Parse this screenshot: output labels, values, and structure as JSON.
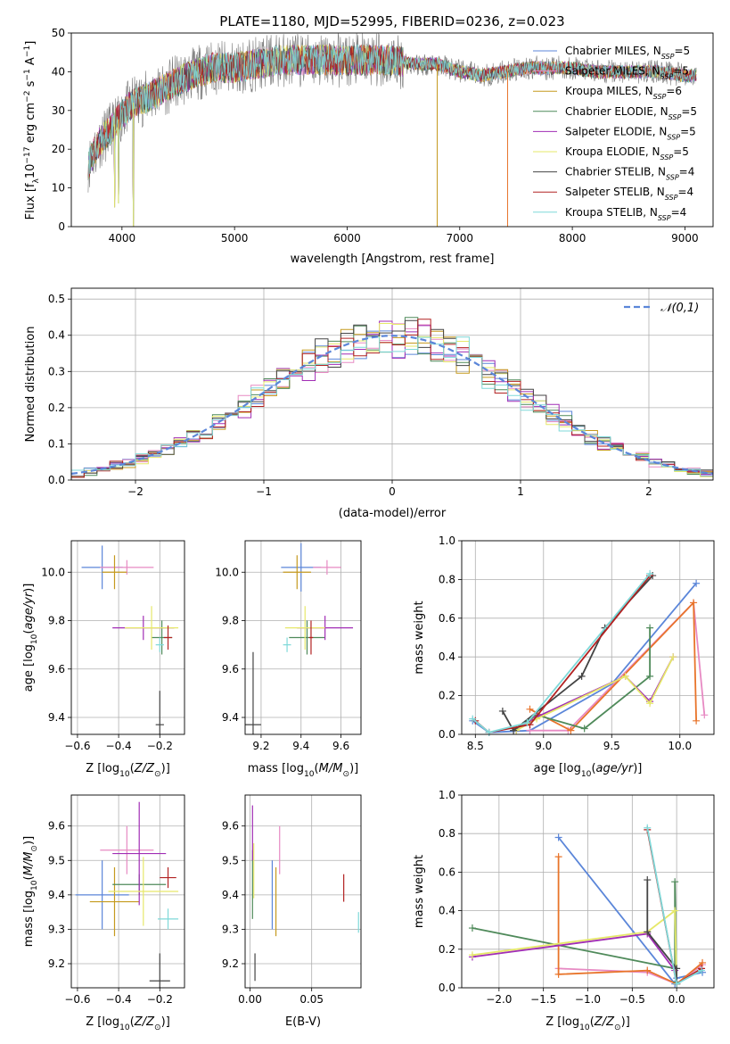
{
  "title": "PLATE=1180, MJD=52995, FIBERID=0236, z=0.023",
  "colors": {
    "Chabrier MILES": "#5b86d9",
    "Salpeter MILES": "#e78ac3",
    "Kroupa MILES": "#c59a1e",
    "Chabrier ELODIE": "#4f8a5a",
    "Salpeter ELODIE": "#a12db5",
    "Kroupa ELODIE": "#e6e86a",
    "Chabrier STELIB": "#444444",
    "Salpeter STELIB": "#b22222",
    "Kroupa STELIB": "#7fd9d9",
    "orange": "#e8742a",
    "gaussian": "#5b86d9"
  },
  "chart_data": [
    {
      "id": "spectrum",
      "type": "line",
      "title": "PLATE=1180, MJD=52995, FIBERID=0236, z=0.023",
      "xlabel": "wavelength [Angstrom, rest frame]",
      "ylabel": "Flux [f_λ 10^-17 erg cm^-2 s^-1 A^-1]",
      "xlim": [
        3550,
        9250
      ],
      "ylim": [
        0,
        50
      ],
      "xticks": [
        4000,
        5000,
        6000,
        7000,
        8000,
        9000
      ],
      "yticks": [
        0,
        10,
        20,
        30,
        40,
        50
      ],
      "legend_position": "top-right",
      "legend": [
        {
          "label": "Chabrier MILES, N",
          "sub": "SSP",
          "tail": "=5"
        },
        {
          "label": "Salpeter MILES, N",
          "sub": "SSP",
          "tail": "=5"
        },
        {
          "label": "Kroupa MILES, N",
          "sub": "SSP",
          "tail": "=6"
        },
        {
          "label": "Chabrier ELODIE, N",
          "sub": "SSP",
          "tail": "=5"
        },
        {
          "label": "Salpeter ELODIE, N",
          "sub": "SSP",
          "tail": "=5"
        },
        {
          "label": "Kroupa ELODIE, N",
          "sub": "SSP",
          "tail": "=5"
        },
        {
          "label": "Chabrier STELIB, N",
          "sub": "SSP",
          "tail": "=4"
        },
        {
          "label": "Salpeter STELIB, N",
          "sub": "SSP",
          "tail": "=4"
        },
        {
          "label": "Kroupa STELIB, N",
          "sub": "SSP",
          "tail": "=4"
        }
      ],
      "continuum": [
        [
          3700,
          16
        ],
        [
          3800,
          22
        ],
        [
          3900,
          25
        ],
        [
          4000,
          29
        ],
        [
          4100,
          32
        ],
        [
          4200,
          33
        ],
        [
          4400,
          36
        ],
        [
          4600,
          39
        ],
        [
          4800,
          41
        ],
        [
          5000,
          41
        ],
        [
          5200,
          42
        ],
        [
          5400,
          43
        ],
        [
          5600,
          43
        ],
        [
          5800,
          43
        ],
        [
          6000,
          43
        ],
        [
          6200,
          43
        ],
        [
          6400,
          43
        ],
        [
          6600,
          42
        ],
        [
          6800,
          42
        ],
        [
          7000,
          40
        ],
        [
          7200,
          39
        ],
        [
          7400,
          40
        ],
        [
          7600,
          41
        ],
        [
          7800,
          41
        ],
        [
          8000,
          41
        ],
        [
          8200,
          40
        ],
        [
          8400,
          40
        ],
        [
          8600,
          40
        ],
        [
          8800,
          40
        ],
        [
          9000,
          39
        ],
        [
          9100,
          39
        ]
      ],
      "absorption_dips": [
        {
          "x": 3935,
          "y": 5
        },
        {
          "x": 3968,
          "y": 6
        },
        {
          "x": 4102,
          "y": 0
        },
        {
          "x": 6800,
          "y": 0
        },
        {
          "x": 7425,
          "y": 0
        }
      ]
    },
    {
      "id": "residuals",
      "type": "area",
      "xlabel": "(data-model)/error",
      "ylabel": "Normed distribution",
      "xlim": [
        -2.5,
        2.5
      ],
      "ylim": [
        0,
        0.53
      ],
      "xticks": [
        -2,
        -1,
        0,
        1,
        2
      ],
      "yticks": [
        0.0,
        0.1,
        0.2,
        0.3,
        0.4,
        0.5
      ],
      "legend_position": "top-right",
      "legend": [
        "N(0,1)"
      ],
      "bin_width": 0.1
    },
    {
      "id": "age-vs-Z",
      "type": "scatter",
      "xlabel": "Z [log10(Z/Z⊙)]",
      "ylabel": "age [log10(age/yr)]",
      "xlim": [
        -0.63,
        -0.08
      ],
      "ylim": [
        9.33,
        10.13
      ],
      "xticks": [
        -0.6,
        -0.4,
        -0.2
      ],
      "yticks": [
        9.4,
        9.6,
        9.8,
        10.0
      ],
      "points": [
        {
          "model": "Chabrier MILES",
          "x": -0.48,
          "y": 10.02,
          "xerr": 0.1,
          "yerr": 0.09
        },
        {
          "model": "Salpeter MILES",
          "x": -0.36,
          "y": 10.02,
          "xerr": 0.13,
          "yerr": 0.03
        },
        {
          "model": "Kroupa MILES",
          "x": -0.42,
          "y": 10.0,
          "xerr": 0.06,
          "yerr": 0.07
        },
        {
          "model": "Chabrier ELODIE",
          "x": -0.19,
          "y": 9.73,
          "xerr": 0.05,
          "yerr": 0.07
        },
        {
          "model": "Salpeter ELODIE",
          "x": -0.28,
          "y": 9.77,
          "xerr": 0.15,
          "yerr": 0.05
        },
        {
          "model": "Kroupa ELODIE",
          "x": -0.24,
          "y": 9.77,
          "xerr": 0.13,
          "yerr": 0.09
        },
        {
          "model": "Chabrier STELIB",
          "x": -0.2,
          "y": 9.37,
          "xerr": 0.02,
          "yerr": 0.14
        },
        {
          "model": "Salpeter STELIB",
          "x": -0.16,
          "y": 9.73,
          "xerr": 0.02,
          "yerr": 0.05
        },
        {
          "model": "Kroupa STELIB",
          "x": -0.2,
          "y": 9.7,
          "xerr": 0.02,
          "yerr": 0.03
        }
      ]
    },
    {
      "id": "age-vs-mass",
      "type": "scatter",
      "xlabel": "mass [log10(M/M⊙)]",
      "ylabel": "",
      "xlim": [
        9.12,
        9.7
      ],
      "ylim": [
        9.33,
        10.13
      ],
      "xticks": [
        9.2,
        9.4,
        9.6
      ],
      "yticks": [
        9.4,
        9.6,
        9.8,
        10.0
      ],
      "points": [
        {
          "model": "Chabrier MILES",
          "x": 9.4,
          "y": 10.02,
          "xerr": 0.1,
          "yerr": 0.1
        },
        {
          "model": "Salpeter MILES",
          "x": 9.53,
          "y": 10.02,
          "xerr": 0.07,
          "yerr": 0.03
        },
        {
          "model": "Kroupa MILES",
          "x": 9.38,
          "y": 10.0,
          "xerr": 0.07,
          "yerr": 0.07
        },
        {
          "model": "Chabrier ELODIE",
          "x": 9.43,
          "y": 9.73,
          "xerr": 0.09,
          "yerr": 0.07
        },
        {
          "model": "Salpeter ELODIE",
          "x": 9.52,
          "y": 9.77,
          "xerr": 0.14,
          "yerr": 0.05
        },
        {
          "model": "Kroupa ELODIE",
          "x": 9.42,
          "y": 9.77,
          "xerr": 0.1,
          "yerr": 0.09
        },
        {
          "model": "Chabrier STELIB",
          "x": 9.16,
          "y": 9.37,
          "xerr": 0.04,
          "yerr": 0.3
        },
        {
          "model": "Salpeter STELIB",
          "x": 9.45,
          "y": 9.73,
          "xerr": 0.01,
          "yerr": 0.07
        },
        {
          "model": "Kroupa STELIB",
          "x": 9.33,
          "y": 9.7,
          "xerr": 0.02,
          "yerr": 0.03
        }
      ]
    },
    {
      "id": "mass-weight-vs-age",
      "type": "line",
      "xlabel": "age [log10(age/yr)]",
      "ylabel": "mass weight",
      "xlim": [
        8.4,
        10.25
      ],
      "ylim": [
        0,
        1
      ],
      "xticks": [
        8.5,
        9.0,
        9.5,
        10.0
      ],
      "yticks": [
        0.0,
        0.2,
        0.4,
        0.6,
        0.8,
        1.0
      ],
      "series": [
        {
          "model": "Chabrier MILES",
          "x": [
            8.48,
            8.6,
            8.9,
            9.5,
            10.12
          ],
          "y": [
            0.07,
            0.01,
            0.02,
            0.26,
            0.78
          ]
        },
        {
          "model": "Salpeter MILES",
          "x": [
            8.9,
            9.18,
            10.1,
            10.18
          ],
          "y": [
            0.02,
            0.02,
            0.68,
            0.1
          ]
        },
        {
          "model": "Kroupa MILES",
          "x": [
            8.9,
            9.2,
            10.1,
            10.12
          ],
          "y": [
            0.13,
            0.02,
            0.68,
            0.07
          ]
        },
        {
          "model": "Chabrier ELODIE",
          "x": [
            8.8,
            8.95,
            9.3,
            9.78,
            9.78
          ],
          "y": [
            0.03,
            0.1,
            0.03,
            0.3,
            0.55
          ]
        },
        {
          "model": "Salpeter ELODIE",
          "x": [
            8.8,
            8.95,
            9.6,
            9.78,
            9.95
          ],
          "y": [
            0.02,
            0.09,
            0.3,
            0.17,
            0.4
          ]
        },
        {
          "model": "Kroupa ELODIE",
          "x": [
            8.8,
            8.95,
            9.6,
            9.78,
            9.95
          ],
          "y": [
            0.02,
            0.08,
            0.3,
            0.16,
            0.4
          ]
        },
        {
          "model": "Chabrier STELIB",
          "x": [
            8.7,
            8.78,
            9.28,
            9.45,
            9.8
          ],
          "y": [
            0.12,
            0.02,
            0.3,
            0.55,
            0.82
          ]
        },
        {
          "model": "Salpeter STELIB",
          "x": [
            8.5,
            8.6,
            8.9,
            9.78
          ],
          "y": [
            0.07,
            0.01,
            0.05,
            0.82
          ]
        },
        {
          "model": "Kroupa STELIB",
          "x": [
            8.48,
            8.6,
            8.88,
            9.78
          ],
          "y": [
            0.08,
            0.01,
            0.06,
            0.83
          ]
        }
      ]
    },
    {
      "id": "mass-vs-Z",
      "type": "scatter",
      "xlabel": "Z [log10(Z/Z⊙)]",
      "ylabel": "mass [log10(M/M⊙)]",
      "xlim": [
        -0.63,
        -0.08
      ],
      "ylim": [
        9.13,
        9.69
      ],
      "xticks": [
        -0.6,
        -0.4,
        -0.2
      ],
      "yticks": [
        9.2,
        9.3,
        9.4,
        9.5,
        9.6
      ],
      "points": [
        {
          "model": "Chabrier MILES",
          "x": -0.48,
          "y": 9.4,
          "xerr": 0.13,
          "yerr": 0.1
        },
        {
          "model": "Salpeter MILES",
          "x": -0.36,
          "y": 9.53,
          "xerr": 0.13,
          "yerr": 0.07
        },
        {
          "model": "Kroupa MILES",
          "x": -0.42,
          "y": 9.38,
          "xerr": 0.12,
          "yerr": 0.1
        },
        {
          "model": "Chabrier ELODIE",
          "x": -0.3,
          "y": 9.43,
          "xerr": 0.13,
          "yerr": 0.03
        },
        {
          "model": "Salpeter ELODIE",
          "x": -0.3,
          "y": 9.52,
          "xerr": 0.13,
          "yerr": 0.15
        },
        {
          "model": "Kroupa ELODIE",
          "x": -0.28,
          "y": 9.41,
          "xerr": 0.17,
          "yerr": 0.1
        },
        {
          "model": "Chabrier STELIB",
          "x": -0.2,
          "y": 9.15,
          "xerr": 0.05,
          "yerr": 0.08
        },
        {
          "model": "Salpeter STELIB",
          "x": -0.16,
          "y": 9.45,
          "xerr": 0.04,
          "yerr": 0.03
        },
        {
          "model": "Kroupa STELIB",
          "x": -0.16,
          "y": 9.33,
          "xerr": 0.05,
          "yerr": 0.03
        }
      ]
    },
    {
      "id": "mass-vs-EBV",
      "type": "scatter",
      "xlabel": "E(B-V)",
      "ylabel": "",
      "xlim": [
        -0.004,
        0.09
      ],
      "ylim": [
        9.13,
        9.69
      ],
      "xticks": [
        0.0,
        0.05
      ],
      "yticks": [
        9.2,
        9.3,
        9.4,
        9.5,
        9.6
      ],
      "points": [
        {
          "model": "Chabrier MILES",
          "x": 0.018,
          "y": 9.4,
          "xerr": 0,
          "yerr": 0.1
        },
        {
          "model": "Salpeter MILES",
          "x": 0.024,
          "y": 9.53,
          "xerr": 0,
          "yerr": 0.07
        },
        {
          "model": "Kroupa MILES",
          "x": 0.021,
          "y": 9.38,
          "xerr": 0,
          "yerr": 0.1
        },
        {
          "model": "Chabrier ELODIE",
          "x": 0.002,
          "y": 9.43,
          "xerr": 0,
          "yerr": 0.1
        },
        {
          "model": "Salpeter ELODIE",
          "x": 0.002,
          "y": 9.58,
          "xerr": 0,
          "yerr": 0.08
        },
        {
          "model": "Kroupa ELODIE",
          "x": 0.003,
          "y": 9.47,
          "xerr": 0,
          "yerr": 0.08
        },
        {
          "model": "Chabrier STELIB",
          "x": 0.004,
          "y": 9.19,
          "xerr": 0,
          "yerr": 0.04
        },
        {
          "model": "Salpeter STELIB",
          "x": 0.076,
          "y": 9.42,
          "xerr": 0,
          "yerr": 0.04
        },
        {
          "model": "Kroupa STELIB",
          "x": 0.088,
          "y": 9.32,
          "xerr": 0,
          "yerr": 0.03
        }
      ]
    },
    {
      "id": "mass-weight-vs-Z",
      "type": "line",
      "xlabel": "Z [log10(Z/Z⊙)]",
      "ylabel": "mass weight",
      "xlim": [
        -2.42,
        0.42
      ],
      "ylim": [
        0,
        1
      ],
      "xticks": [
        -2.0,
        -1.5,
        -1.0,
        -0.5,
        0.0
      ],
      "yticks": [
        0.0,
        0.2,
        0.4,
        0.6,
        0.8,
        1.0
      ],
      "series": [
        {
          "model": "Chabrier MILES",
          "x": [
            -1.33,
            -0.02,
            0.0,
            0.29
          ],
          "y": [
            0.78,
            0.02,
            0.05,
            0.08
          ]
        },
        {
          "model": "Salpeter MILES",
          "x": [
            -1.33,
            -0.33,
            0.0,
            0.29
          ],
          "y": [
            0.1,
            0.08,
            0.02,
            0.12
          ]
        },
        {
          "model": "Kroupa MILES",
          "x": [
            -1.33,
            -1.33,
            -0.33,
            0.0,
            0.29
          ],
          "y": [
            0.68,
            0.07,
            0.09,
            0.02,
            0.13
          ]
        },
        {
          "model": "Chabrier ELODIE",
          "x": [
            -2.3,
            -0.02,
            -0.02,
            0.0
          ],
          "y": [
            0.31,
            0.1,
            0.55,
            0.03
          ]
        },
        {
          "model": "Salpeter ELODIE",
          "x": [
            -2.3,
            -0.33,
            -0.02,
            0.0
          ],
          "y": [
            0.16,
            0.28,
            0.09,
            0.02
          ]
        },
        {
          "model": "Kroupa ELODIE",
          "x": [
            -2.3,
            -0.33,
            -0.02,
            0.0
          ],
          "y": [
            0.17,
            0.29,
            0.4,
            0.02
          ]
        },
        {
          "model": "Chabrier STELIB",
          "x": [
            -0.33,
            -0.33,
            0.0,
            0.0
          ],
          "y": [
            0.56,
            0.29,
            0.1,
            0.02
          ]
        },
        {
          "model": "Salpeter STELIB",
          "x": [
            -0.33,
            0.0,
            0.28
          ],
          "y": [
            0.82,
            0.02,
            0.1
          ]
        },
        {
          "model": "Kroupa STELIB",
          "x": [
            -0.33,
            0.0,
            0.28
          ],
          "y": [
            0.83,
            0.02,
            0.09
          ]
        }
      ]
    }
  ]
}
